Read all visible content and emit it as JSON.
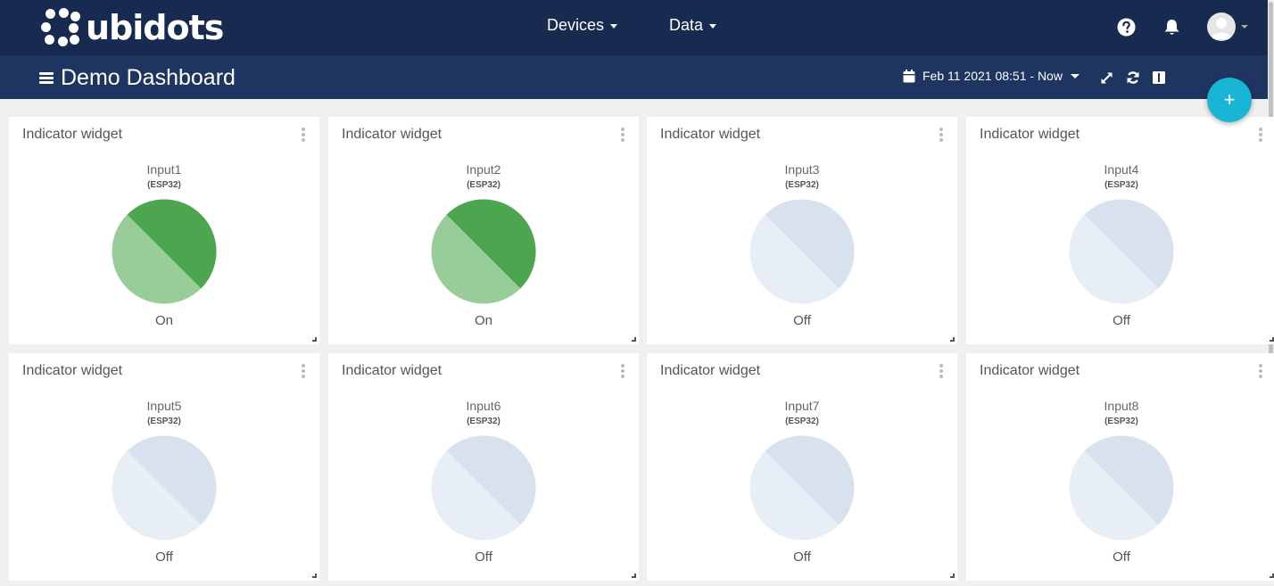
{
  "brand": {
    "name": "ubidots"
  },
  "nav": {
    "devices_label": "Devices",
    "data_label": "Data"
  },
  "header_icons": [
    "help-icon",
    "bell-icon",
    "user-avatar"
  ],
  "dashboard": {
    "title": "Demo Dashboard",
    "date_range": "Feb 11 2021 08:51 - Now",
    "toolbar_icons": [
      "calendar-icon",
      "fullscreen-icon",
      "refresh-icon",
      "columns-icon"
    ],
    "add_label": "+"
  },
  "colors": {
    "topbar": "#172a4f",
    "subbar": "#1f3561",
    "on_light": "#98cc98",
    "on_dark": "#4ca64f",
    "off_light": "#e8eef6",
    "off_dark": "#d8e2ee",
    "fab": "#18b6d4"
  },
  "widgets": [
    {
      "title": "Indicator widget",
      "variable": "Input1",
      "device": "(ESP32)",
      "state": "On"
    },
    {
      "title": "Indicator widget",
      "variable": "Input2",
      "device": "(ESP32)",
      "state": "On"
    },
    {
      "title": "Indicator widget",
      "variable": "Input3",
      "device": "(ESP32)",
      "state": "Off"
    },
    {
      "title": "Indicator widget",
      "variable": "Input4",
      "device": "(ESP32)",
      "state": "Off"
    },
    {
      "title": "Indicator widget",
      "variable": "Input5",
      "device": "(ESP32)",
      "state": "Off"
    },
    {
      "title": "Indicator widget",
      "variable": "Input6",
      "device": "(ESP32)",
      "state": "Off"
    },
    {
      "title": "Indicator widget",
      "variable": "Input7",
      "device": "(ESP32)",
      "state": "Off"
    },
    {
      "title": "Indicator widget",
      "variable": "Input8",
      "device": "(ESP32)",
      "state": "Off"
    }
  ]
}
